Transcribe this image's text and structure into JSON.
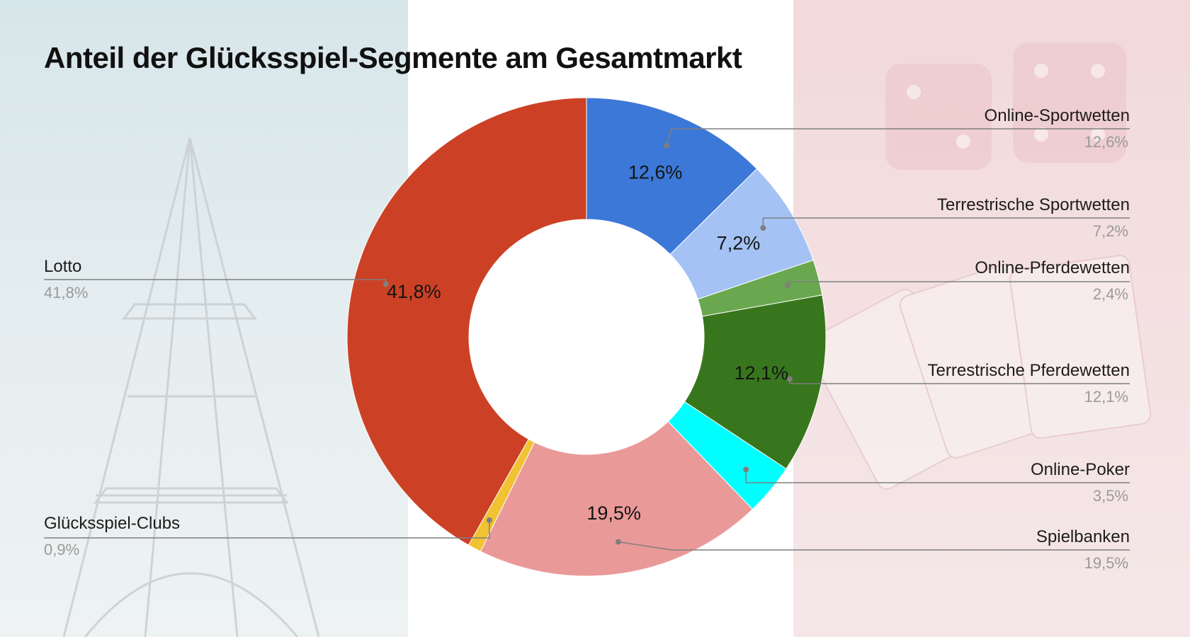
{
  "chart_data": {
    "type": "pie",
    "title": "Anteil der Glücksspiel-Segmente am Gesamtmarkt",
    "donut": true,
    "slices": [
      {
        "label": "Online-Sportwetten",
        "value": 12.6,
        "display": "12,6%",
        "color": "#3c78d8"
      },
      {
        "label": "Terrestrische Sportwetten",
        "value": 7.2,
        "display": "7,2%",
        "color": "#a4c2f4"
      },
      {
        "label": "Online-Pferdewetten",
        "value": 2.4,
        "display": "2,4%",
        "color": "#6aa84f"
      },
      {
        "label": "Terrestrische Pferdewetten",
        "value": 12.1,
        "display": "12,1%",
        "color": "#38761d"
      },
      {
        "label": "Online-Poker",
        "value": 3.5,
        "display": "3,5%",
        "color": "#00ffff"
      },
      {
        "label": "Spielbanken",
        "value": 19.5,
        "display": "19,5%",
        "color": "#ea9999"
      },
      {
        "label": "Glücksspiel-Clubs",
        "value": 0.9,
        "display": "0,9%",
        "color": "#f1c232"
      },
      {
        "label": "Lotto",
        "value": 41.8,
        "display": "41,8%",
        "color": "#cc4125"
      }
    ]
  }
}
